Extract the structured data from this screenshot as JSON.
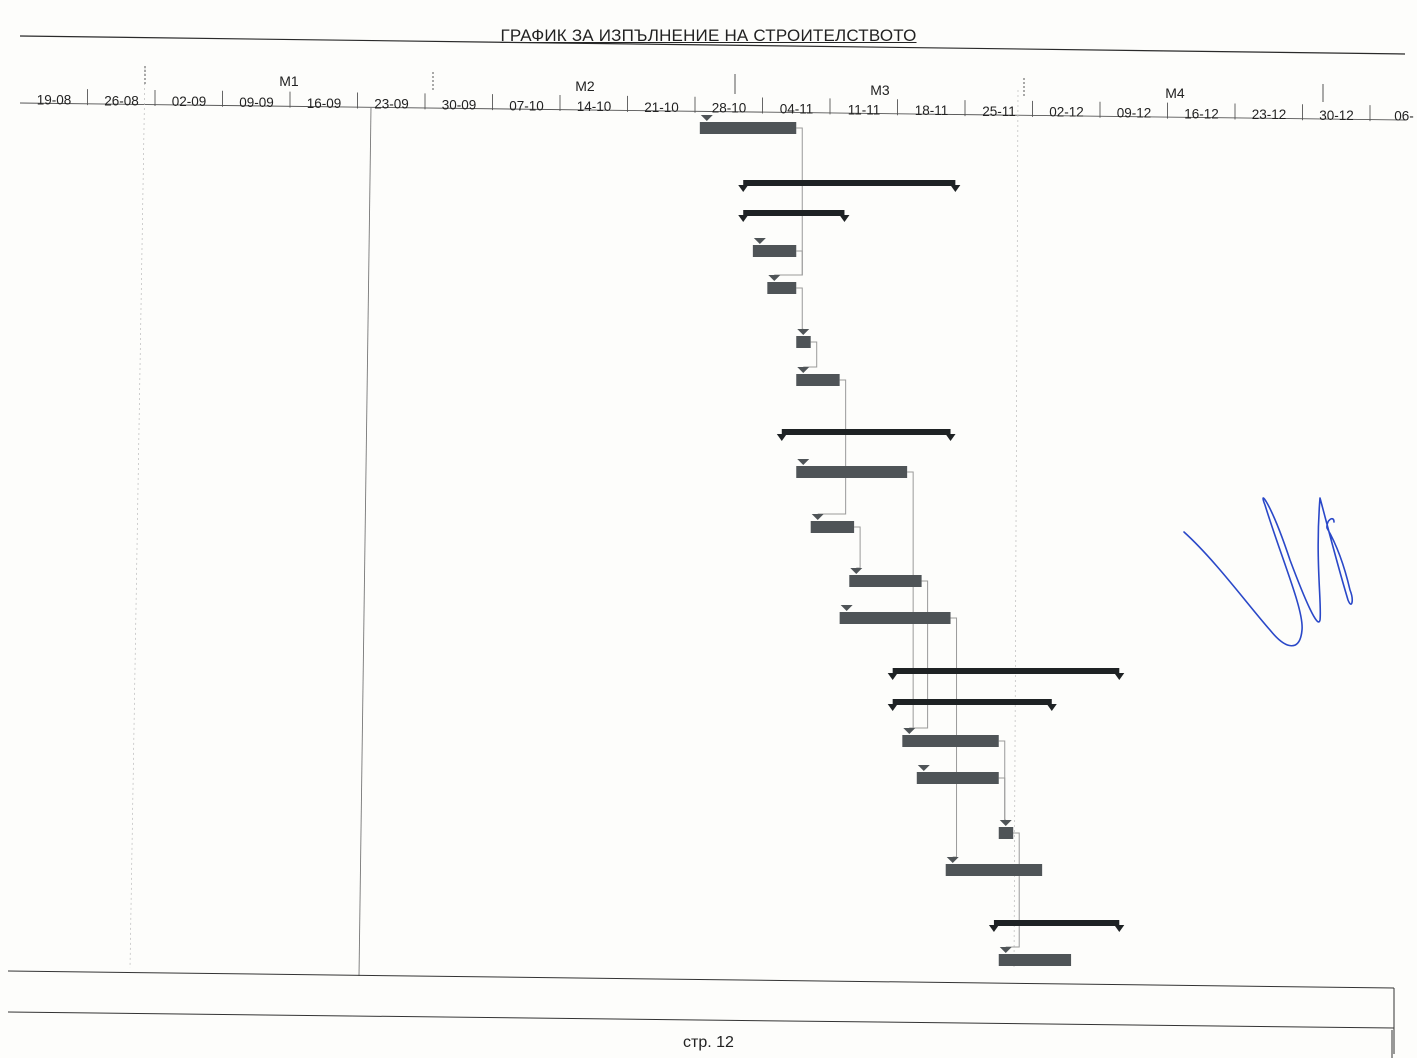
{
  "document": {
    "title": "ГРАФИК ЗА ИЗПЪЛНЕНИЕ НА СТРОИТЕЛСТВОТО",
    "footer": "стр. 12"
  },
  "timescale": {
    "months": [
      "M1",
      "M2",
      "M3",
      "M4"
    ],
    "weeks": [
      "19-08",
      "26-08",
      "02-09",
      "09-09",
      "16-09",
      "23-09",
      "30-09",
      "07-10",
      "14-10",
      "21-10",
      "28-10",
      "04-11",
      "11-11",
      "18-11",
      "25-11",
      "02-12",
      "09-12",
      "16-12",
      "23-12",
      "30-12",
      "06-"
    ]
  },
  "colors": {
    "ink": "#2a2a2a",
    "task_bar": "#4f5457",
    "summary_bar": "#1e2224",
    "link": "#9a9a9a",
    "signature": "#2a48c8"
  },
  "chart_data": {
    "type": "gantt",
    "unit": "day offset from 19-08",
    "tasks": [
      {
        "kind": "task",
        "start": 70.5,
        "end": 80.5
      },
      {
        "kind": "summary",
        "start": 75,
        "end": 97
      },
      {
        "kind": "summary",
        "start": 75,
        "end": 85.5
      },
      {
        "kind": "task",
        "start": 76,
        "end": 80.5
      },
      {
        "kind": "task",
        "start": 77.5,
        "end": 80.5
      },
      {
        "kind": "task",
        "start": 80.5,
        "end": 82
      },
      {
        "kind": "task",
        "start": 80.5,
        "end": 85
      },
      {
        "kind": "summary",
        "start": 79,
        "end": 96.5
      },
      {
        "kind": "task",
        "start": 80.5,
        "end": 92
      },
      {
        "kind": "task",
        "start": 82,
        "end": 86.5
      },
      {
        "kind": "task",
        "start": 86,
        "end": 93.5
      },
      {
        "kind": "task",
        "start": 85,
        "end": 96.5
      },
      {
        "kind": "summary",
        "start": 90.5,
        "end": 114
      },
      {
        "kind": "summary",
        "start": 90.5,
        "end": 107
      },
      {
        "kind": "task",
        "start": 91.5,
        "end": 101.5
      },
      {
        "kind": "task",
        "start": 93,
        "end": 101.5
      },
      {
        "kind": "task",
        "start": 101.5,
        "end": 103
      },
      {
        "kind": "task",
        "start": 96,
        "end": 106
      },
      {
        "kind": "summary",
        "start": 101,
        "end": 114
      },
      {
        "kind": "task",
        "start": 101.5,
        "end": 109
      }
    ]
  }
}
